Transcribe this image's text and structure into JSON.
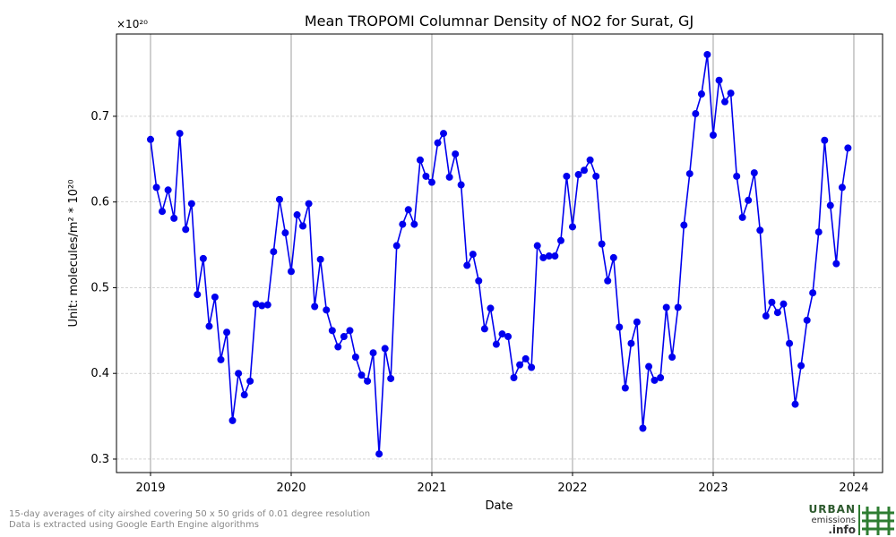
{
  "chart_data": {
    "type": "line",
    "title": "Mean TROPOMI Columnar Density of NO2 for Surat, GJ",
    "x_label": "Date",
    "y_label": "Unit: molecules/m² * 10²⁰",
    "y_offset_label": "×10²⁰",
    "x": [
      2019.0,
      2019.042,
      2019.083,
      2019.125,
      2019.167,
      2019.208,
      2019.25,
      2019.292,
      2019.333,
      2019.375,
      2019.417,
      2019.458,
      2019.5,
      2019.542,
      2019.583,
      2019.625,
      2019.667,
      2019.708,
      2019.75,
      2019.792,
      2019.833,
      2019.875,
      2019.917,
      2019.958,
      2020.0,
      2020.042,
      2020.083,
      2020.125,
      2020.167,
      2020.208,
      2020.25,
      2020.292,
      2020.333,
      2020.375,
      2020.417,
      2020.458,
      2020.5,
      2020.542,
      2020.583,
      2020.625,
      2020.667,
      2020.708,
      2020.75,
      2020.792,
      2020.833,
      2020.875,
      2020.917,
      2020.958,
      2021.0,
      2021.042,
      2021.083,
      2021.125,
      2021.167,
      2021.208,
      2021.25,
      2021.292,
      2021.333,
      2021.375,
      2021.417,
      2021.458,
      2021.5,
      2021.542,
      2021.583,
      2021.625,
      2021.667,
      2021.708,
      2021.75,
      2021.792,
      2021.833,
      2021.875,
      2021.917,
      2021.958,
      2022.0,
      2022.042,
      2022.083,
      2022.125,
      2022.167,
      2022.208,
      2022.25,
      2022.292,
      2022.333,
      2022.375,
      2022.417,
      2022.458,
      2022.5,
      2022.542,
      2022.583,
      2022.625,
      2022.667,
      2022.708,
      2022.75,
      2022.792,
      2022.833,
      2022.875,
      2022.917,
      2022.958,
      2023.0,
      2023.042,
      2023.083,
      2023.125,
      2023.167,
      2023.208,
      2023.25,
      2023.292,
      2023.333,
      2023.375,
      2023.417,
      2023.458,
      2023.5,
      2023.542,
      2023.583,
      2023.625,
      2023.667,
      2023.708,
      2023.75,
      2023.792,
      2023.833,
      2023.875,
      2023.917,
      2023.958
    ],
    "series": [
      {
        "color": "#0000ee",
        "values": [
          0.673,
          0.617,
          0.589,
          0.614,
          0.581,
          0.68,
          0.568,
          0.598,
          0.492,
          0.534,
          0.455,
          0.489,
          0.416,
          0.448,
          0.345,
          0.4,
          0.375,
          0.391,
          0.481,
          0.479,
          0.48,
          0.542,
          0.603,
          0.564,
          0.519,
          0.585,
          0.572,
          0.598,
          0.478,
          0.533,
          0.474,
          0.45,
          0.431,
          0.443,
          0.45,
          0.419,
          0.398,
          0.391,
          0.424,
          0.306,
          0.429,
          0.394,
          0.549,
          0.574,
          0.591,
          0.574,
          0.649,
          0.63,
          0.623,
          0.669,
          0.68,
          0.629,
          0.656,
          0.62,
          0.526,
          0.539,
          0.508,
          0.452,
          0.476,
          0.434,
          0.446,
          0.443,
          0.395,
          0.41,
          0.417,
          0.407,
          0.549,
          0.535,
          0.537,
          0.537,
          0.555,
          0.63,
          0.571,
          0.632,
          0.637,
          0.649,
          0.63,
          0.551,
          0.508,
          0.535,
          0.454,
          0.383,
          0.435,
          0.46,
          0.336,
          0.408,
          0.392,
          0.395,
          0.477,
          0.419,
          0.477,
          0.573,
          0.633,
          0.703,
          0.726,
          0.772,
          0.678,
          0.742,
          0.717,
          0.727,
          0.63,
          0.582,
          0.602,
          0.634,
          0.567,
          0.467,
          0.483,
          0.471,
          0.481,
          0.435,
          0.364,
          0.409,
          0.462,
          0.494,
          0.565,
          0.672,
          0.596,
          0.528,
          0.617,
          0.663
        ]
      }
    ],
    "xlim": [
      2018.758,
      2024.204
    ],
    "ylim": [
      0.2843,
      0.796
    ],
    "xticks": [
      2019,
      2020,
      2021,
      2022,
      2023,
      2024
    ],
    "yticks": [
      0.3,
      0.4,
      0.5,
      0.6,
      0.7
    ],
    "grid": true
  },
  "footnote": [
    "15-day averages of city airshed covering 50 x 50 grids of 0.01 degree resolution",
    "Data is extracted using Google Earth Engine algorithms"
  ],
  "logo": [
    "URBAN",
    "emissions",
    ".info"
  ]
}
